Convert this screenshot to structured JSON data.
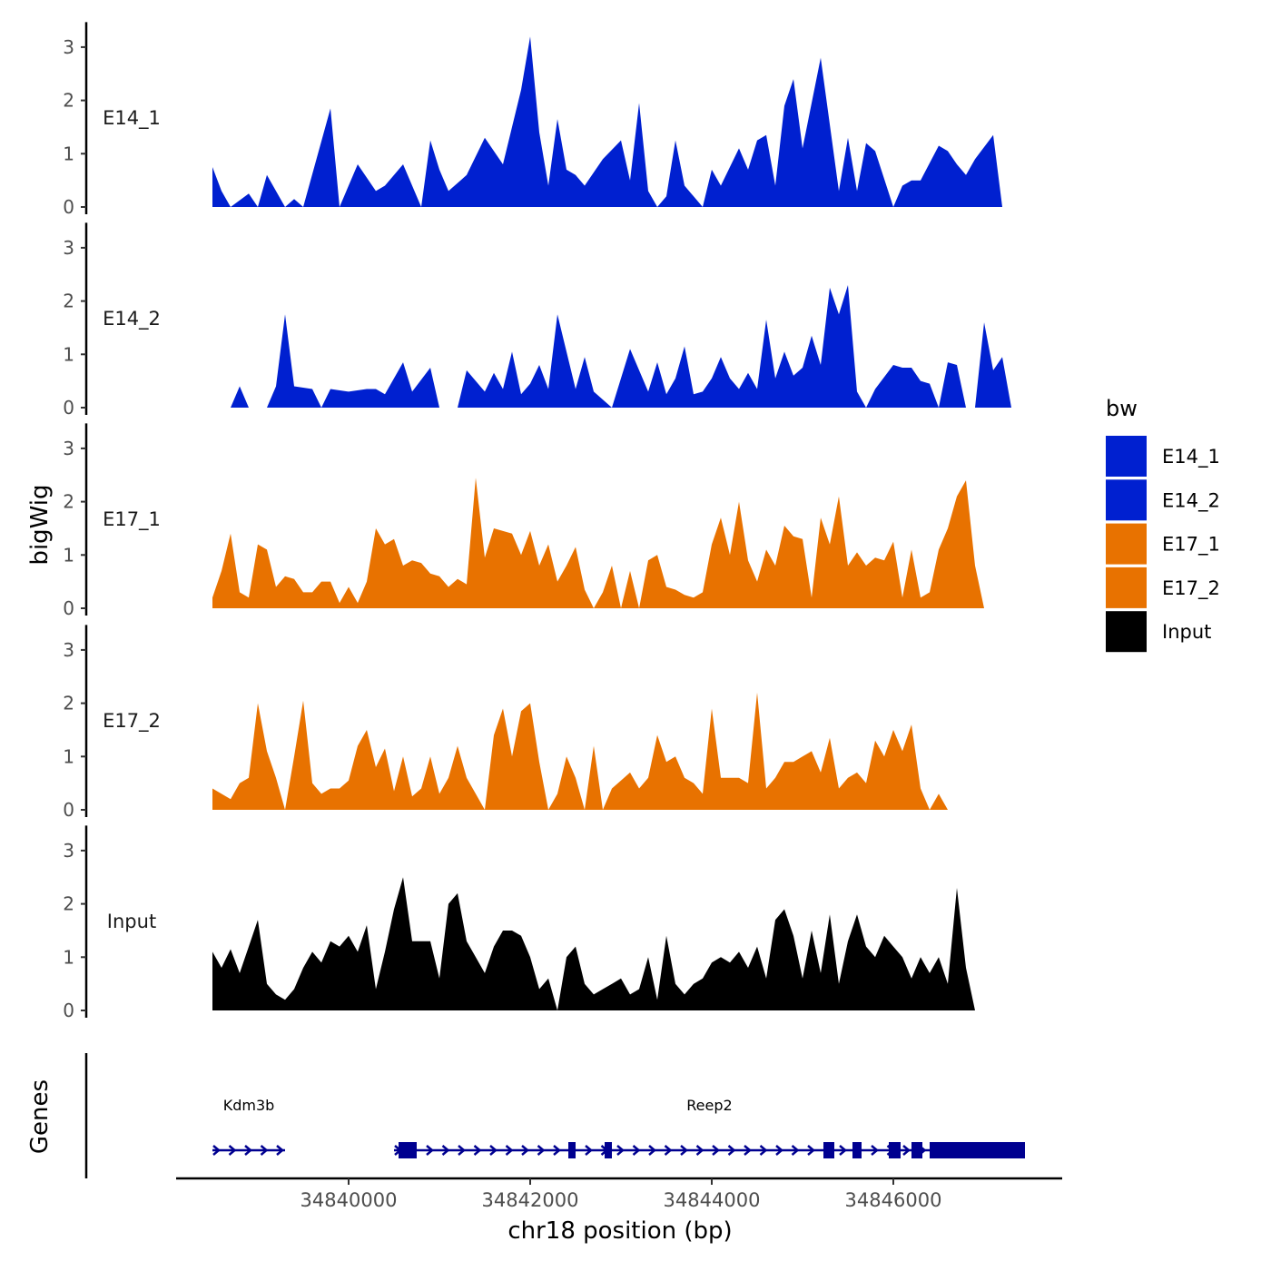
{
  "chart_data": {
    "type": "area",
    "x_axis": {
      "label": "chr18 position (bp)",
      "range": [
        34838000,
        34847700
      ],
      "ticks": [
        34840000,
        34842000,
        34844000,
        34846000
      ],
      "tick_labels": [
        "34840000",
        "34842000",
        "34844000",
        "34846000"
      ]
    },
    "y_axis": {
      "label": "bigWig",
      "range": [
        0,
        3.4
      ],
      "ticks": [
        0,
        1,
        2,
        3
      ],
      "tick_labels": [
        "0",
        "1",
        "2",
        "3"
      ]
    },
    "legend": {
      "title": "bw",
      "position": "right",
      "entries": [
        {
          "name": "E14_1",
          "color": "#0020D0"
        },
        {
          "name": "E14_2",
          "color": "#0020D0"
        },
        {
          "name": "E17_1",
          "color": "#E87200"
        },
        {
          "name": "E17_2",
          "color": "#E87200"
        },
        {
          "name": "Input",
          "color": "#000000"
        }
      ]
    },
    "series": [
      {
        "name": "E14_1",
        "color": "#0020D0",
        "x": [
          34838500,
          34838600,
          34838700,
          34838900,
          34839000,
          34839100,
          34839300,
          34839400,
          34839500,
          34839800,
          34839900,
          34840100,
          34840300,
          34840400,
          34840600,
          34840800,
          34840900,
          34841000,
          34841100,
          34841300,
          34841500,
          34841700,
          34841800,
          34841900,
          34842000,
          34842100,
          34842200,
          34842300,
          34842400,
          34842500,
          34842600,
          34842800,
          34843000,
          34843100,
          34843200,
          34843300,
          34843400,
          34843500,
          34843600,
          34843700,
          34843900,
          34844000,
          34844100,
          34844300,
          34844400,
          34844500,
          34844600,
          34844700,
          34844800,
          34844900,
          34845000,
          34845200,
          34845400,
          34845500,
          34845600,
          34845700,
          34845800,
          34846000,
          34846100,
          34846200,
          34846300,
          34846500,
          34846600,
          34846700,
          34846800,
          34846900,
          34847100,
          34847200,
          34847300,
          34847400
        ],
        "y": [
          0.75,
          0.3,
          0.0,
          0.25,
          0.0,
          0.6,
          0.0,
          0.15,
          0.0,
          1.85,
          0.0,
          0.8,
          0.3,
          0.4,
          0.8,
          0.0,
          1.25,
          0.7,
          0.3,
          0.6,
          1.3,
          0.8,
          1.5,
          2.2,
          3.2,
          1.4,
          0.4,
          1.65,
          0.7,
          0.6,
          0.4,
          0.9,
          1.25,
          0.5,
          1.95,
          0.3,
          0.0,
          0.2,
          1.25,
          0.4,
          0.0,
          0.7,
          0.4,
          1.1,
          0.7,
          1.25,
          1.35,
          0.4,
          1.9,
          2.4,
          1.1,
          2.8,
          0.3,
          1.3,
          0.3,
          1.2,
          1.05,
          0.0,
          0.4,
          0.5,
          0.5,
          1.15,
          1.05,
          0.8,
          0.6,
          0.9,
          1.35,
          0.0,
          0.0,
          0.0
        ]
      },
      {
        "name": "E14_2",
        "color": "#0020D0",
        "x": [
          34838700,
          34838800,
          34838900,
          34839100,
          34839200,
          34839300,
          34839400,
          34839600,
          34839700,
          34839800,
          34840000,
          34840200,
          34840300,
          34840400,
          34840600,
          34840700,
          34840900,
          34841000,
          34841200,
          34841300,
          34841500,
          34841600,
          34841700,
          34841800,
          34841900,
          34842000,
          34842100,
          34842200,
          34842300,
          34842500,
          34842600,
          34842700,
          34842900,
          34843100,
          34843300,
          34843400,
          34843500,
          34843600,
          34843700,
          34843800,
          34843900,
          34844000,
          34844100,
          34844200,
          34844300,
          34844400,
          34844500,
          34844600,
          34844700,
          34844800,
          34844900,
          34845000,
          34845100,
          34845200,
          34845300,
          34845400,
          34845500,
          34845600,
          34845700,
          34845800,
          34846000,
          34846100,
          34846200,
          34846300,
          34846400,
          34846500,
          34846600,
          34846700,
          34846800,
          34846900,
          34847000,
          34847100,
          34847200,
          34847300,
          34847400
        ],
        "y": [
          0.0,
          0.4,
          0.0,
          0.0,
          0.4,
          1.75,
          0.4,
          0.35,
          0.0,
          0.35,
          0.3,
          0.35,
          0.35,
          0.25,
          0.85,
          0.3,
          0.75,
          0.0,
          0.0,
          0.7,
          0.3,
          0.65,
          0.35,
          1.05,
          0.25,
          0.45,
          0.8,
          0.35,
          1.75,
          0.35,
          0.95,
          0.3,
          0.0,
          1.1,
          0.3,
          0.85,
          0.25,
          0.55,
          1.15,
          0.25,
          0.3,
          0.55,
          0.95,
          0.55,
          0.35,
          0.65,
          0.35,
          1.65,
          0.55,
          1.05,
          0.6,
          0.75,
          1.35,
          0.8,
          2.25,
          1.75,
          2.3,
          0.3,
          0.0,
          0.35,
          0.8,
          0.75,
          0.75,
          0.5,
          0.45,
          0.0,
          0.85,
          0.8,
          0.0,
          0.0,
          1.6,
          0.7,
          0.95,
          0.0,
          0.0
        ]
      },
      {
        "name": "E17_1",
        "color": "#E87200",
        "x": [
          34838500,
          34838600,
          34838700,
          34838800,
          34838900,
          34839000,
          34839100,
          34839200,
          34839300,
          34839400,
          34839500,
          34839600,
          34839700,
          34839800,
          34839900,
          34840000,
          34840100,
          34840200,
          34840300,
          34840400,
          34840500,
          34840600,
          34840700,
          34840800,
          34840900,
          34841000,
          34841100,
          34841200,
          34841300,
          34841400,
          34841500,
          34841600,
          34841700,
          34841800,
          34841900,
          34842000,
          34842100,
          34842200,
          34842300,
          34842400,
          34842500,
          34842600,
          34842700,
          34842800,
          34842900,
          34843000,
          34843100,
          34843200,
          34843300,
          34843400,
          34843500,
          34843600,
          34843700,
          34843800,
          34843900,
          34844000,
          34844100,
          34844200,
          34844300,
          34844400,
          34844500,
          34844600,
          34844700,
          34844800,
          34844900,
          34845000,
          34845100,
          34845200,
          34845300,
          34845400,
          34845500,
          34845600,
          34845700,
          34845800,
          34845900,
          34846000,
          34846100,
          34846200,
          34846300,
          34846400,
          34846500,
          34846600,
          34846700,
          34846800,
          34846900,
          34847000,
          34847100,
          34847200,
          34847300,
          34847400
        ],
        "y": [
          0.2,
          0.7,
          1.4,
          0.3,
          0.2,
          1.2,
          1.1,
          0.4,
          0.6,
          0.55,
          0.3,
          0.3,
          0.5,
          0.5,
          0.1,
          0.4,
          0.1,
          0.5,
          1.5,
          1.2,
          1.3,
          0.8,
          0.9,
          0.85,
          0.65,
          0.6,
          0.4,
          0.55,
          0.45,
          2.45,
          0.95,
          1.5,
          1.45,
          1.4,
          1.0,
          1.45,
          0.8,
          1.2,
          0.5,
          0.8,
          1.15,
          0.35,
          0.0,
          0.3,
          0.8,
          0.0,
          0.7,
          0.0,
          0.9,
          1.0,
          0.4,
          0.35,
          0.25,
          0.2,
          0.3,
          1.2,
          1.7,
          1.0,
          2.0,
          0.9,
          0.5,
          1.1,
          0.8,
          1.55,
          1.35,
          1.3,
          0.2,
          1.7,
          1.2,
          2.1,
          0.8,
          1.05,
          0.8,
          0.95,
          0.9,
          1.25,
          0.2,
          1.1,
          0.2,
          0.3,
          1.1,
          1.5,
          2.1,
          2.4,
          0.8,
          0.0,
          0.0,
          0.0,
          0.0,
          0.0
        ]
      },
      {
        "name": "E17_2",
        "color": "#E87200",
        "x": [
          34838500,
          34838600,
          34838700,
          34838800,
          34838900,
          34839000,
          34839100,
          34839200,
          34839300,
          34839400,
          34839500,
          34839600,
          34839700,
          34839800,
          34839900,
          34840000,
          34840100,
          34840200,
          34840300,
          34840400,
          34840500,
          34840600,
          34840700,
          34840800,
          34840900,
          34841000,
          34841100,
          34841200,
          34841300,
          34841400,
          34841500,
          34841600,
          34841700,
          34841800,
          34841900,
          34842000,
          34842100,
          34842200,
          34842300,
          34842400,
          34842500,
          34842600,
          34842700,
          34842800,
          34842900,
          34843000,
          34843100,
          34843200,
          34843300,
          34843400,
          34843500,
          34843600,
          34843700,
          34843800,
          34843900,
          34844000,
          34844100,
          34844200,
          34844300,
          34844400,
          34844500,
          34844600,
          34844700,
          34844800,
          34844900,
          34845000,
          34845100,
          34845200,
          34845300,
          34845400,
          34845500,
          34845600,
          34845700,
          34845800,
          34845900,
          34846000,
          34846100,
          34846200,
          34846300,
          34846400,
          34846500,
          34846600,
          34846700,
          34846800,
          34846900,
          34847000,
          34847100,
          34847200,
          34847300,
          34847400
        ],
        "y": [
          0.4,
          0.3,
          0.2,
          0.5,
          0.6,
          2.0,
          1.1,
          0.6,
          0.0,
          1.0,
          2.05,
          0.5,
          0.3,
          0.4,
          0.4,
          0.55,
          1.2,
          1.5,
          0.8,
          1.15,
          0.35,
          1.0,
          0.25,
          0.4,
          1.0,
          0.3,
          0.6,
          1.2,
          0.6,
          0.3,
          0.0,
          1.4,
          1.9,
          1.0,
          1.85,
          2.0,
          0.9,
          0.0,
          0.3,
          1.0,
          0.6,
          0.0,
          1.2,
          0.0,
          0.4,
          0.55,
          0.7,
          0.4,
          0.6,
          1.4,
          0.9,
          1.0,
          0.6,
          0.5,
          0.3,
          1.9,
          0.6,
          0.6,
          0.6,
          0.5,
          2.2,
          0.4,
          0.6,
          0.9,
          0.9,
          1.0,
          1.1,
          0.7,
          1.35,
          0.4,
          0.6,
          0.7,
          0.5,
          1.3,
          1.0,
          1.5,
          1.1,
          1.6,
          0.4,
          0.0,
          0.3,
          0.0,
          0.0,
          0.0,
          0.0,
          0.0,
          0.0,
          0.0,
          0.0,
          0.0
        ]
      },
      {
        "name": "Input",
        "color": "#000000",
        "x": [
          34838500,
          34838600,
          34838700,
          34838800,
          34838900,
          34839000,
          34839100,
          34839200,
          34839300,
          34839400,
          34839500,
          34839600,
          34839700,
          34839800,
          34839900,
          34840000,
          34840100,
          34840200,
          34840300,
          34840400,
          34840500,
          34840600,
          34840700,
          34840800,
          34840900,
          34841000,
          34841100,
          34841200,
          34841300,
          34841400,
          34841500,
          34841600,
          34841700,
          34841800,
          34841900,
          34842000,
          34842100,
          34842200,
          34842300,
          34842400,
          34842500,
          34842600,
          34842700,
          34842800,
          34842900,
          34843000,
          34843100,
          34843200,
          34843300,
          34843400,
          34843500,
          34843600,
          34843700,
          34843800,
          34843900,
          34844000,
          34844100,
          34844200,
          34844300,
          34844400,
          34844500,
          34844600,
          34844700,
          34844800,
          34844900,
          34845000,
          34845100,
          34845200,
          34845300,
          34845400,
          34845500,
          34845600,
          34845700,
          34845800,
          34845900,
          34846000,
          34846100,
          34846200,
          34846300,
          34846400,
          34846500,
          34846600,
          34846700,
          34846800,
          34846900,
          34847000,
          34847100,
          34847200,
          34847300,
          34847400
        ],
        "y": [
          1.1,
          0.8,
          1.15,
          0.7,
          1.2,
          1.7,
          0.5,
          0.3,
          0.2,
          0.4,
          0.8,
          1.1,
          0.9,
          1.3,
          1.2,
          1.4,
          1.1,
          1.6,
          0.4,
          1.1,
          1.9,
          2.5,
          1.3,
          1.3,
          1.3,
          0.6,
          2.0,
          2.2,
          1.3,
          1.0,
          0.7,
          1.2,
          1.5,
          1.5,
          1.4,
          1.0,
          0.4,
          0.6,
          0.0,
          1.0,
          1.2,
          0.5,
          0.3,
          0.4,
          0.5,
          0.6,
          0.3,
          0.4,
          1.0,
          0.2,
          1.4,
          0.5,
          0.3,
          0.5,
          0.6,
          0.9,
          1.0,
          0.9,
          1.1,
          0.8,
          1.2,
          0.6,
          1.7,
          1.9,
          1.4,
          0.6,
          1.5,
          0.7,
          1.8,
          0.5,
          1.3,
          1.8,
          1.2,
          1.0,
          1.4,
          1.2,
          1.0,
          0.6,
          1.0,
          0.7,
          1.0,
          0.5,
          2.3,
          0.8,
          0.0,
          0.0,
          0.0,
          0.0,
          0.0,
          0.0
        ]
      }
    ],
    "genes_track": {
      "label": "Genes",
      "color": "#000090",
      "genes": [
        {
          "name": "Kdm3b",
          "start": 34838500,
          "end": 34839300,
          "strand": "+",
          "exons": []
        },
        {
          "name": "Reep2",
          "start": 34840500,
          "end": 34847450,
          "strand": "+",
          "exons": [
            [
              34840550,
              34840750
            ],
            [
              34842420,
              34842500
            ],
            [
              34842820,
              34842900
            ],
            [
              34845230,
              34845350
            ],
            [
              34845550,
              34845650
            ],
            [
              34845950,
              34846080
            ],
            [
              34846200,
              34846320
            ],
            [
              34846400,
              34847450
            ]
          ]
        }
      ]
    }
  }
}
